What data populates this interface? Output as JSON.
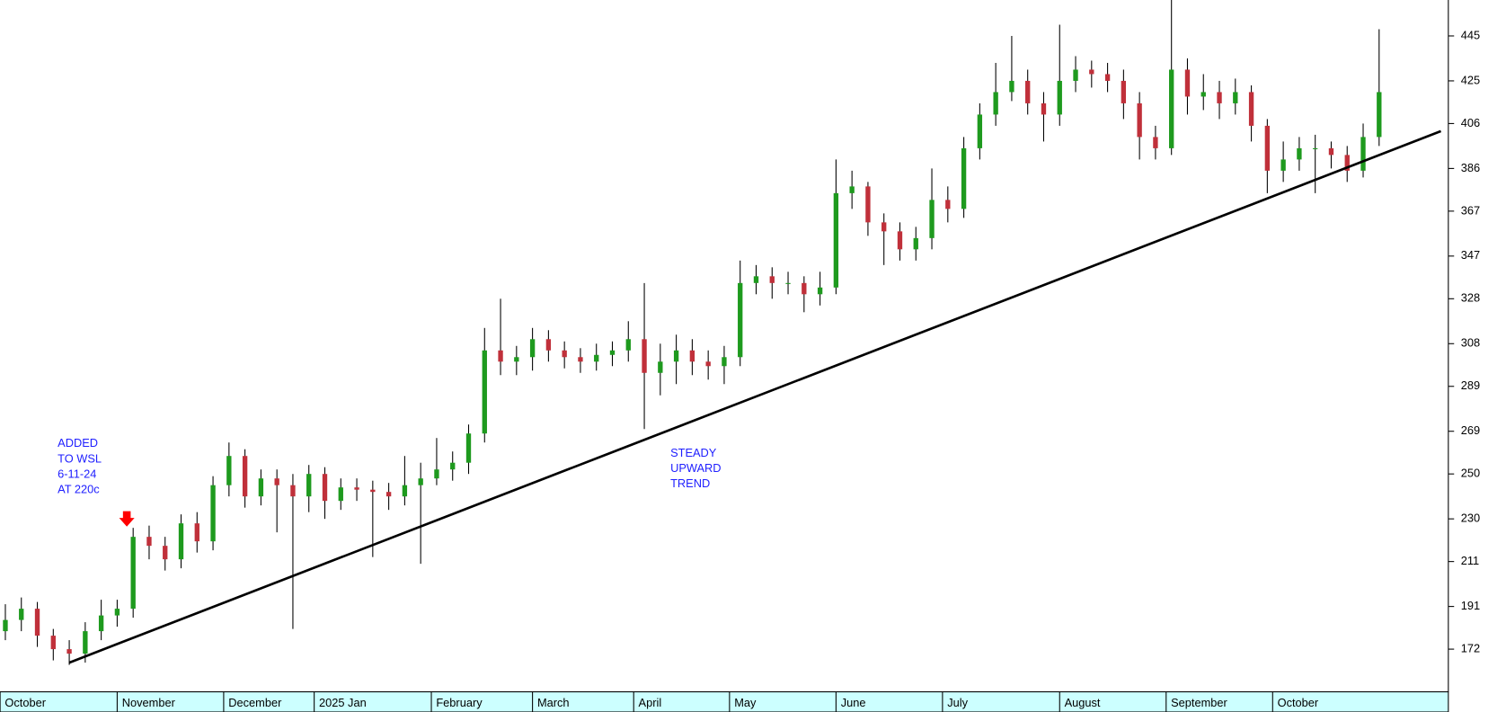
{
  "chart_data": {
    "type": "candlestick",
    "up_color": "#1e9a1e",
    "down_color": "#c0303a",
    "xlim": [
      0,
      272
    ],
    "ylim": [
      153,
      461
    ],
    "yticks": [
      172,
      191,
      211,
      230,
      250,
      269,
      289,
      308,
      328,
      347,
      367,
      386,
      406,
      425,
      445
    ],
    "xticks": [
      {
        "value": 0,
        "label": "October"
      },
      {
        "value": 22,
        "label": "November"
      },
      {
        "value": 42,
        "label": "December"
      },
      {
        "value": 59,
        "label": "2025 Jan"
      },
      {
        "value": 81,
        "label": "February"
      },
      {
        "value": 100,
        "label": "March"
      },
      {
        "value": 119,
        "label": "April"
      },
      {
        "value": 137,
        "label": "May"
      },
      {
        "value": 157,
        "label": "June"
      },
      {
        "value": 177,
        "label": "July"
      },
      {
        "value": 199,
        "label": "August"
      },
      {
        "value": 219,
        "label": "September"
      },
      {
        "value": 239,
        "label": "October"
      }
    ],
    "x": [
      1,
      4,
      7,
      10,
      13,
      16,
      19,
      22,
      25,
      28,
      31,
      34,
      37,
      40,
      43,
      46,
      49,
      52,
      55,
      58,
      61,
      64,
      67,
      70,
      73,
      76,
      79,
      82,
      85,
      88,
      91,
      94,
      97,
      100,
      103,
      106,
      109,
      112,
      115,
      118,
      121,
      124,
      127,
      130,
      133,
      136,
      139,
      142,
      145,
      148,
      151,
      154,
      157,
      160,
      163,
      166,
      169,
      172,
      175,
      178,
      181,
      184,
      187,
      190,
      193,
      196,
      199,
      202,
      205,
      208,
      211,
      214,
      217,
      220,
      223,
      226,
      229,
      232,
      235,
      238,
      241,
      244,
      247,
      250,
      253,
      256,
      259
    ],
    "open": [
      180,
      185,
      190,
      178,
      172,
      170,
      180,
      187,
      190,
      222,
      218,
      212,
      228,
      220,
      245,
      258,
      240,
      248,
      245,
      240,
      250,
      238,
      244,
      243,
      242,
      240,
      245,
      248,
      252,
      255,
      268,
      305,
      300,
      302,
      310,
      305,
      302,
      300,
      303,
      305,
      310,
      295,
      300,
      305,
      300,
      298,
      302,
      335,
      338,
      335,
      335,
      330,
      333,
      375,
      378,
      362,
      358,
      350,
      355,
      372,
      368,
      395,
      410,
      420,
      425,
      415,
      410,
      425,
      430,
      428,
      425,
      415,
      400,
      395,
      430,
      418,
      420,
      415,
      420,
      405,
      385,
      390,
      395,
      395,
      392,
      385,
      400
    ],
    "high": [
      192,
      195,
      193,
      181,
      176,
      184,
      194,
      194,
      226,
      227,
      222,
      232,
      233,
      249,
      264,
      261,
      252,
      252,
      250,
      254,
      253,
      248,
      248,
      247,
      246,
      258,
      255,
      266,
      260,
      272,
      315,
      328,
      307,
      315,
      314,
      309,
      306,
      308,
      309,
      318,
      335,
      308,
      312,
      310,
      305,
      307,
      345,
      343,
      342,
      340,
      338,
      340,
      390,
      385,
      380,
      366,
      362,
      360,
      386,
      378,
      400,
      415,
      433,
      445,
      430,
      420,
      450,
      436,
      434,
      433,
      430,
      420,
      405,
      465,
      435,
      428,
      425,
      426,
      423,
      408,
      398,
      400,
      401,
      398,
      396,
      406,
      448
    ],
    "low": [
      176,
      180,
      173,
      167,
      165,
      166,
      176,
      182,
      186,
      212,
      207,
      208,
      215,
      216,
      240,
      235,
      236,
      224,
      181,
      233,
      230,
      234,
      238,
      213,
      234,
      236,
      210,
      245,
      247,
      250,
      264,
      294,
      294,
      296,
      300,
      297,
      295,
      296,
      298,
      300,
      270,
      285,
      290,
      294,
      292,
      290,
      298,
      330,
      328,
      330,
      322,
      325,
      330,
      368,
      356,
      343,
      345,
      345,
      350,
      362,
      364,
      390,
      405,
      416,
      410,
      398,
      405,
      420,
      422,
      420,
      408,
      390,
      390,
      392,
      410,
      412,
      408,
      410,
      398,
      375,
      380,
      385,
      375,
      386,
      380,
      382,
      396
    ],
    "close": [
      185,
      190,
      178,
      172,
      170,
      180,
      187,
      190,
      222,
      218,
      212,
      228,
      220,
      245,
      258,
      240,
      248,
      245,
      240,
      250,
      238,
      244,
      243,
      242,
      240,
      245,
      248,
      252,
      255,
      268,
      305,
      300,
      302,
      310,
      305,
      302,
      300,
      303,
      305,
      310,
      295,
      300,
      305,
      300,
      298,
      302,
      335,
      338,
      335,
      335,
      330,
      333,
      375,
      378,
      362,
      358,
      350,
      355,
      372,
      368,
      395,
      410,
      420,
      425,
      415,
      410,
      425,
      430,
      428,
      425,
      415,
      400,
      395,
      430,
      418,
      420,
      415,
      420,
      405,
      385,
      390,
      395,
      395,
      392,
      385,
      400,
      420
    ],
    "trendline": {
      "x": [
        13,
        270.6
      ],
      "y": [
        166,
        402.6
      ]
    },
    "annotations": [
      {
        "lines": [
          "ADDED",
          "TO WSL",
          "6-11-24",
          "AT 220c"
        ]
      },
      {
        "lines": [
          "STEADY",
          "UPWARD",
          "TREND"
        ]
      }
    ]
  }
}
